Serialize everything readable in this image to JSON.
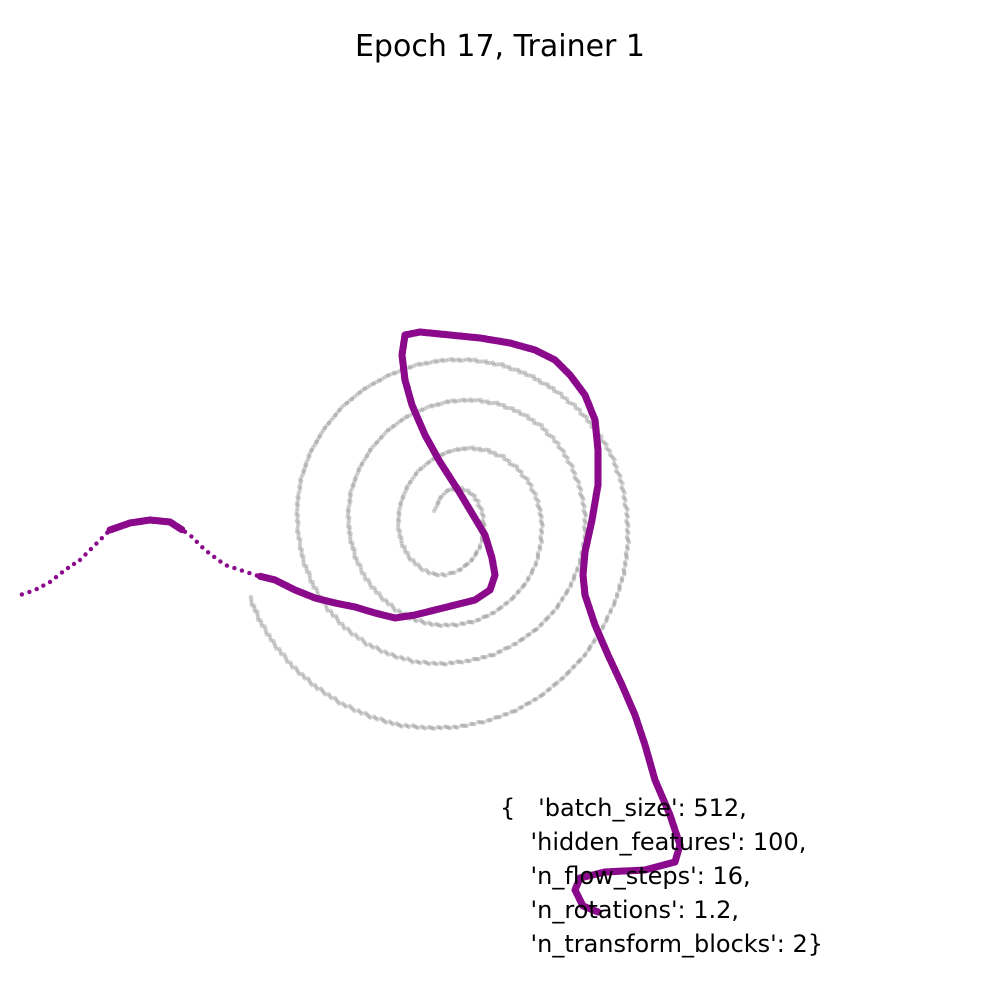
{
  "chart_data": {
    "type": "scatter",
    "title": "Epoch 17, Trainer 1",
    "xlabel": "",
    "ylabel": "",
    "axes_visible": false,
    "grid": false,
    "xlim": [
      -4,
      4
    ],
    "ylim": [
      -4,
      4
    ],
    "series": [
      {
        "role": "target",
        "color": "#9a9a9a",
        "points": [
          [
            -0.15,
            0.3
          ],
          [
            -0.1,
            0.42
          ],
          [
            -0.02,
            0.5
          ],
          [
            0.09,
            0.52
          ],
          [
            0.2,
            0.48
          ],
          [
            0.28,
            0.38
          ],
          [
            0.33,
            0.25
          ],
          [
            0.34,
            0.09
          ],
          [
            0.3,
            -0.07
          ],
          [
            0.22,
            -0.2
          ],
          [
            0.1,
            -0.3
          ],
          [
            -0.04,
            -0.35
          ],
          [
            -0.18,
            -0.34
          ],
          [
            -0.31,
            -0.27
          ],
          [
            -0.42,
            -0.16
          ],
          [
            -0.49,
            -0.01
          ],
          [
            -0.52,
            0.16
          ],
          [
            -0.5,
            0.35
          ],
          [
            -0.43,
            0.53
          ],
          [
            -0.32,
            0.69
          ],
          [
            -0.17,
            0.81
          ],
          [
            0,
            0.89
          ],
          [
            0.18,
            0.92
          ],
          [
            0.36,
            0.9
          ],
          [
            0.53,
            0.83
          ],
          [
            0.68,
            0.71
          ],
          [
            0.8,
            0.56
          ],
          [
            0.88,
            0.38
          ],
          [
            0.92,
            0.18
          ],
          [
            0.91,
            -0.03
          ],
          [
            0.86,
            -0.24
          ],
          [
            0.76,
            -0.43
          ],
          [
            0.62,
            -0.59
          ],
          [
            0.45,
            -0.72
          ],
          [
            0.26,
            -0.81
          ],
          [
            0.06,
            -0.85
          ],
          [
            -0.15,
            -0.85
          ],
          [
            -0.35,
            -0.8
          ],
          [
            -0.54,
            -0.7
          ],
          [
            -0.7,
            -0.56
          ],
          [
            -0.84,
            -0.39
          ],
          [
            -0.94,
            -0.19
          ],
          [
            -1,
            0.03
          ],
          [
            -1.02,
            0.26
          ],
          [
            -0.99,
            0.49
          ],
          [
            -0.91,
            0.71
          ],
          [
            -0.79,
            0.91
          ],
          [
            -0.63,
            1.09
          ],
          [
            -0.44,
            1.23
          ],
          [
            -0.22,
            1.33
          ],
          [
            0.01,
            1.39
          ],
          [
            0.25,
            1.4
          ],
          [
            0.49,
            1.36
          ],
          [
            0.71,
            1.27
          ],
          [
            0.91,
            1.14
          ],
          [
            1.08,
            0.96
          ],
          [
            1.21,
            0.75
          ],
          [
            1.3,
            0.52
          ],
          [
            1.35,
            0.28
          ],
          [
            1.35,
            0.02
          ],
          [
            1.3,
            -0.23
          ],
          [
            1.2,
            -0.47
          ],
          [
            1.06,
            -0.69
          ],
          [
            0.88,
            -0.88
          ],
          [
            0.67,
            -1.03
          ],
          [
            0.43,
            -1.15
          ],
          [
            0.18,
            -1.21
          ],
          [
            -0.08,
            -1.24
          ],
          [
            -0.34,
            -1.22
          ],
          [
            -0.59,
            -1.15
          ],
          [
            -0.83,
            -1.04
          ],
          [
            -1.05,
            -0.88
          ],
          [
            -1.23,
            -0.68
          ],
          [
            -1.37,
            -0.45
          ],
          [
            -1.47,
            -0.2
          ],
          [
            -1.52,
            0.07
          ],
          [
            -1.53,
            0.34
          ],
          [
            -1.49,
            0.61
          ],
          [
            -1.4,
            0.87
          ],
          [
            -1.26,
            1.11
          ],
          [
            -1.08,
            1.33
          ],
          [
            -0.86,
            1.51
          ],
          [
            -0.61,
            1.65
          ],
          [
            -0.34,
            1.75
          ],
          [
            -0.06,
            1.8
          ],
          [
            0.23,
            1.8
          ],
          [
            0.52,
            1.75
          ],
          [
            0.79,
            1.65
          ],
          [
            1.05,
            1.5
          ],
          [
            1.28,
            1.31
          ],
          [
            1.47,
            1.09
          ],
          [
            1.62,
            0.84
          ],
          [
            1.72,
            0.56
          ],
          [
            1.77,
            0.27
          ],
          [
            1.78,
            -0.03
          ],
          [
            1.74,
            -0.33
          ],
          [
            1.65,
            -0.62
          ],
          [
            1.52,
            -0.89
          ],
          [
            1.35,
            -1.15
          ],
          [
            1.14,
            -1.37
          ],
          [
            0.91,
            -1.56
          ],
          [
            0.65,
            -1.71
          ],
          [
            0.37,
            -1.81
          ],
          [
            0.08,
            -1.87
          ],
          [
            -0.22,
            -1.88
          ],
          [
            -0.52,
            -1.85
          ],
          [
            -0.81,
            -1.76
          ],
          [
            -1.08,
            -1.64
          ],
          [
            -1.34,
            -1.47
          ],
          [
            -1.57,
            -1.27
          ],
          [
            -1.76,
            -1.04
          ],
          [
            -1.9,
            -0.81
          ],
          [
            -2,
            -0.58
          ]
        ]
      },
      {
        "role": "samples",
        "color": "#8b0a8b",
        "points": [
          [
            1.48,
            -3.72
          ],
          [
            1.33,
            -3.66
          ],
          [
            1.25,
            -3.5
          ],
          [
            1.3,
            -3.38
          ],
          [
            1.55,
            -3.32
          ],
          [
            1.95,
            -3.3
          ],
          [
            2.25,
            -3.22
          ],
          [
            2.3,
            -3.05
          ],
          [
            2.2,
            -2.75
          ],
          [
            2.05,
            -2.4
          ],
          [
            1.95,
            -2.05
          ],
          [
            1.85,
            -1.75
          ],
          [
            1.72,
            -1.45
          ],
          [
            1.58,
            -1.15
          ],
          [
            1.45,
            -0.85
          ],
          [
            1.35,
            -0.55
          ],
          [
            1.33,
            -0.35
          ],
          [
            1.35,
            -0.12
          ],
          [
            1.42,
            0.2
          ],
          [
            1.48,
            0.55
          ],
          [
            1.48,
            0.9
          ],
          [
            1.45,
            1.2
          ],
          [
            1.35,
            1.45
          ],
          [
            1.2,
            1.65
          ],
          [
            1.05,
            1.8
          ],
          [
            0.85,
            1.9
          ],
          [
            0.6,
            1.97
          ],
          [
            0.3,
            2.02
          ],
          [
            0,
            2.05
          ],
          [
            -0.3,
            2.08
          ],
          [
            -0.45,
            2.05
          ],
          [
            -0.48,
            1.85
          ],
          [
            -0.45,
            1.6
          ],
          [
            -0.38,
            1.35
          ],
          [
            -0.25,
            1.05
          ],
          [
            -0.1,
            0.78
          ],
          [
            0.08,
            0.5
          ],
          [
            0.2,
            0.3
          ],
          [
            0.35,
            0.05
          ],
          [
            0.42,
            -0.18
          ],
          [
            0.45,
            -0.35
          ],
          [
            0.4,
            -0.5
          ],
          [
            0.25,
            -0.6
          ],
          [
            0.05,
            -0.65
          ],
          [
            -0.15,
            -0.7
          ],
          [
            -0.35,
            -0.75
          ],
          [
            -0.55,
            -0.78
          ],
          [
            -0.75,
            -0.73
          ],
          [
            -0.95,
            -0.67
          ],
          [
            -1.15,
            -0.63
          ],
          [
            -1.35,
            -0.58
          ],
          [
            -1.55,
            -0.5
          ],
          [
            -1.75,
            -0.4
          ],
          [
            -1.95,
            -0.35
          ],
          [
            -2.25,
            -0.25
          ],
          [
            -2.45,
            -0.1
          ],
          [
            -2.6,
            0.05
          ],
          [
            -2.8,
            0.18
          ],
          [
            -3,
            0.2
          ],
          [
            -3.2,
            0.17
          ],
          [
            -3.4,
            0.1
          ],
          [
            -3.55,
            -0.05
          ],
          [
            -3.7,
            -0.2
          ],
          [
            -3.85,
            -0.3
          ],
          [
            -4,
            -0.42
          ],
          [
            -4.15,
            -0.5
          ],
          [
            -4.3,
            -0.55
          ]
        ]
      }
    ],
    "annotation": {
      "lines": [
        "{   'batch_size': 512,",
        "    'hidden_features': 100,",
        "    'n_flow_steps': 16,",
        "    'n_rotations': 1.2,",
        "    'n_transform_blocks': 2}"
      ]
    }
  }
}
